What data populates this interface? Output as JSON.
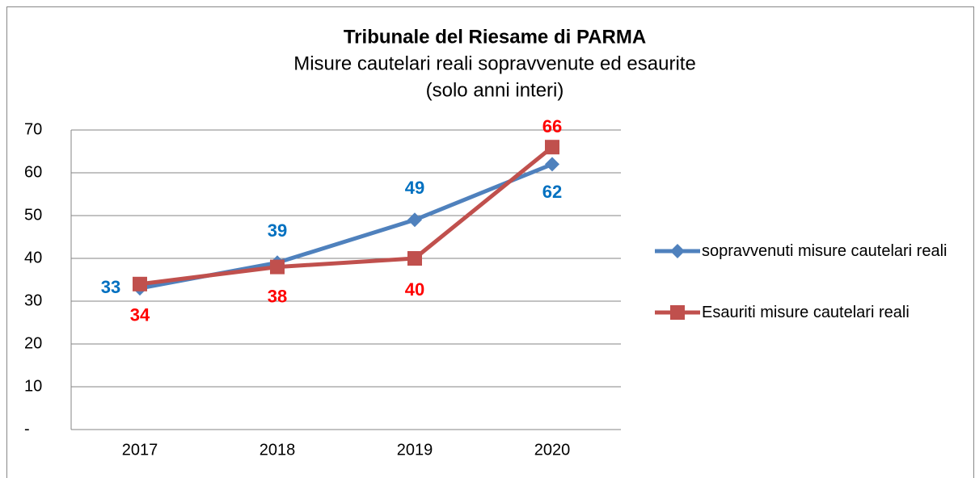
{
  "chart_data": {
    "type": "line",
    "title": "Tribunale del Riesame di PARMA",
    "subtitle": [
      "Misure cautelari reali sopravvenute ed esaurite",
      "(solo anni interi)"
    ],
    "categories": [
      "2017",
      "2018",
      "2019",
      "2020"
    ],
    "series": [
      {
        "name": "sopravvenuti misure cautelari reali",
        "color": "#4f81bd",
        "label_color": "#0070c0",
        "marker": "diamond",
        "values": [
          33,
          39,
          49,
          62
        ]
      },
      {
        "name": "Esauriti misure cautelari reali",
        "color": "#c0504d",
        "label_color": "#ff0000",
        "marker": "square",
        "values": [
          34,
          38,
          40,
          66
        ]
      }
    ],
    "ylim": [
      0,
      70
    ],
    "yticks": [
      {
        "value": 0,
        "label": "-"
      },
      10,
      20,
      30,
      40,
      50,
      60,
      70
    ],
    "grid": true,
    "legend": "right"
  }
}
